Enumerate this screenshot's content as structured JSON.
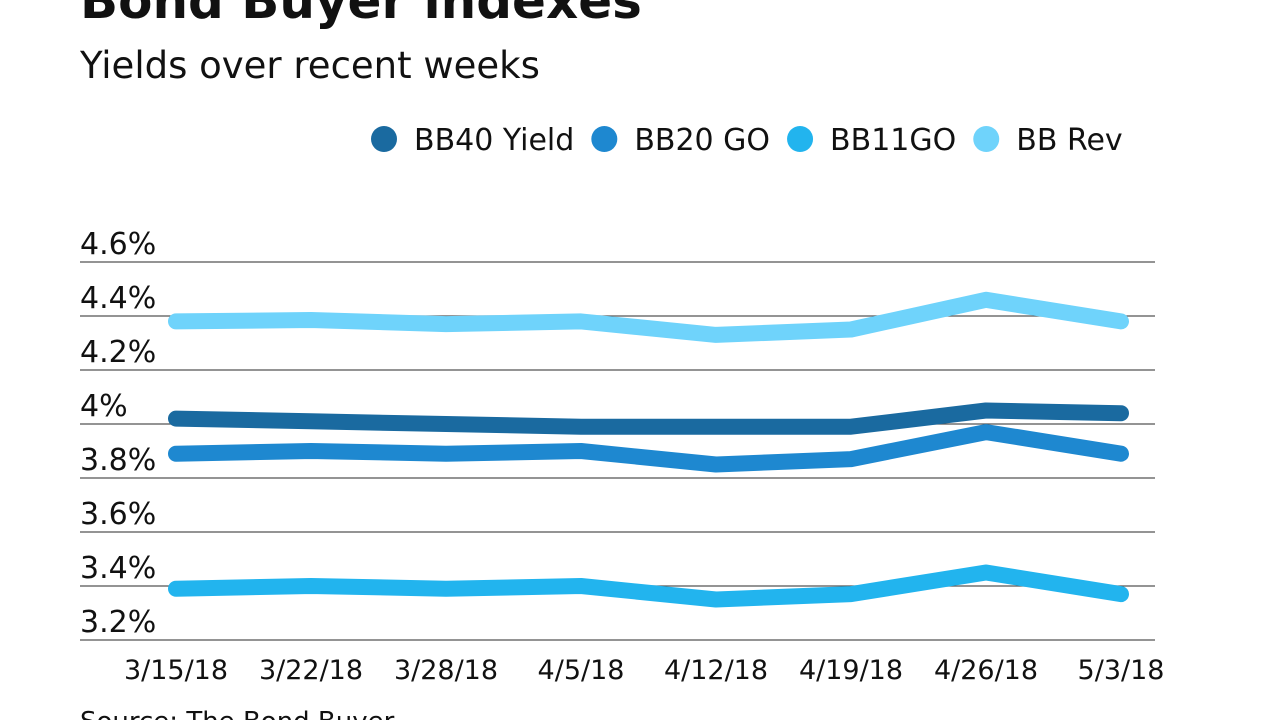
{
  "chart_data": {
    "type": "line",
    "title": "Bond Buyer indexes",
    "subtitle": "Yields over recent weeks",
    "source": "Source: The Bond Buyer",
    "categories": [
      "3/15/18",
      "3/22/18",
      "3/28/18",
      "4/5/18",
      "4/12/18",
      "4/19/18",
      "4/26/18",
      "5/3/18"
    ],
    "series": [
      {
        "name": "BB40 Yield",
        "color": "#1a6aa0",
        "values": [
          4.02,
          4.01,
          4.0,
          3.99,
          3.99,
          3.99,
          4.05,
          4.04
        ]
      },
      {
        "name": "BB20 GO",
        "color": "#1e88d0",
        "values": [
          3.89,
          3.9,
          3.89,
          3.9,
          3.85,
          3.87,
          3.97,
          3.89
        ]
      },
      {
        "name": "BB11GO",
        "color": "#22b4ee",
        "values": [
          3.39,
          3.4,
          3.39,
          3.4,
          3.35,
          3.37,
          3.45,
          3.37
        ]
      },
      {
        "name": "BB Rev",
        "color": "#6fd3fb",
        "values": [
          4.38,
          4.385,
          4.37,
          4.38,
          4.33,
          4.35,
          4.46,
          4.38
        ]
      }
    ],
    "ylim": [
      3.2,
      4.6
    ],
    "yticks": [
      {
        "value": 3.2,
        "label": "3.2%"
      },
      {
        "value": 3.4,
        "label": "3.4%"
      },
      {
        "value": 3.6,
        "label": "3.6%"
      },
      {
        "value": 3.8,
        "label": "3.8%"
      },
      {
        "value": 4,
        "label": "4%"
      },
      {
        "value": 4.2,
        "label": "4.2%"
      },
      {
        "value": 4.4,
        "label": "4.4%"
      },
      {
        "value": 4.6,
        "label": "4.6%"
      }
    ],
    "grid": true
  }
}
